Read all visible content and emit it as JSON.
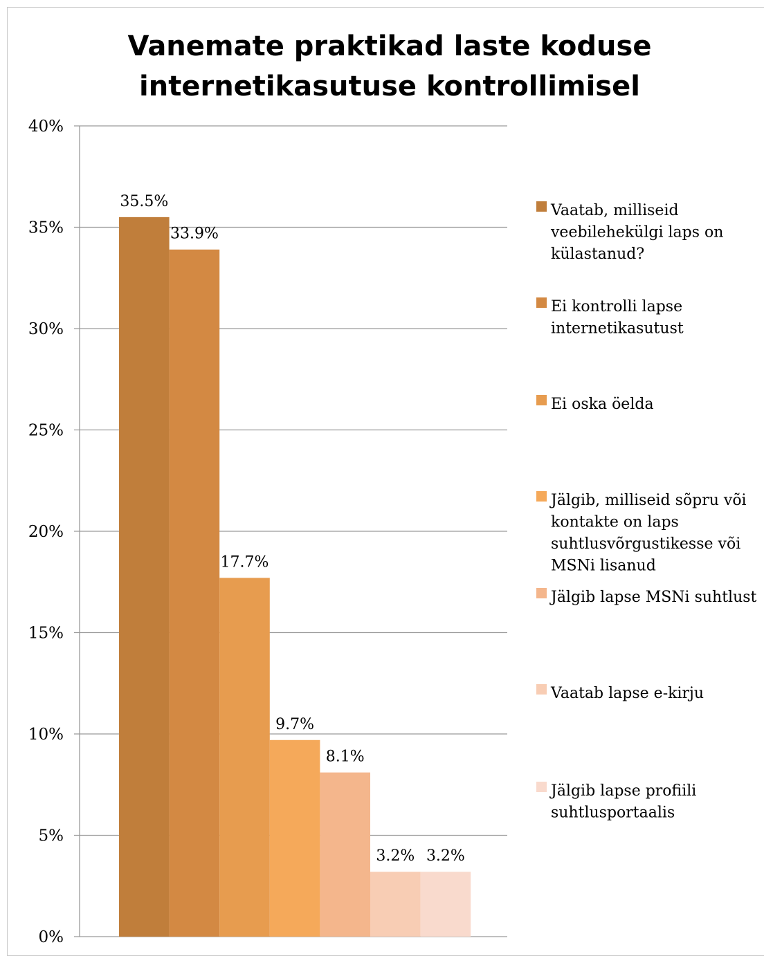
{
  "chart_data": {
    "type": "bar",
    "title": [
      "Vanemate praktikad laste koduse",
      "internetikasutuse kontrollimisel"
    ],
    "xlabel": "",
    "ylabel": "",
    "ylim": [
      0,
      0.4
    ],
    "yticks": [
      {
        "value": 0.0,
        "label": "0%"
      },
      {
        "value": 0.05,
        "label": "5%"
      },
      {
        "value": 0.1,
        "label": "10%"
      },
      {
        "value": 0.15,
        "label": "15%"
      },
      {
        "value": 0.2,
        "label": "20%"
      },
      {
        "value": 0.25,
        "label": "25%"
      },
      {
        "value": 0.3,
        "label": "30%"
      },
      {
        "value": 0.35,
        "label": "35%"
      },
      {
        "value": 0.4,
        "label": "40%"
      }
    ],
    "grid": true,
    "legend_position": "right",
    "series": [
      {
        "name": [
          "Vaatab, milliseid",
          "veebilehekülgi laps on",
          "külastanud?"
        ],
        "value": 0.355,
        "label": "35.5%",
        "color": "#c07e3b"
      },
      {
        "name": [
          "Ei kontrolli lapse",
          "internetikasutust"
        ],
        "value": 0.339,
        "label": "33.9%",
        "color": "#d38943"
      },
      {
        "name": [
          "Ei oska öelda"
        ],
        "value": 0.177,
        "label": "17.7%",
        "color": "#e79c4f"
      },
      {
        "name": [
          "Jälgib, milliseid sõpru või",
          "kontakte on laps",
          "suhtlusvõrgustikesse või",
          "MSNi lisanud"
        ],
        "value": 0.097,
        "label": "9.7%",
        "color": "#f5a95a"
      },
      {
        "name": [
          "Jälgib lapse MSNi suhtlust"
        ],
        "value": 0.081,
        "label": "8.1%",
        "color": "#f4b68c"
      },
      {
        "name": [
          "Vaatab lapse e-kirju"
        ],
        "value": 0.032,
        "label": "3.2%",
        "color": "#f8cdb4"
      },
      {
        "name": [
          "Jälgib lapse profiili",
          "suhtlusportaalis"
        ],
        "value": 0.032,
        "label": "3.2%",
        "color": "#f9dacd"
      }
    ]
  }
}
